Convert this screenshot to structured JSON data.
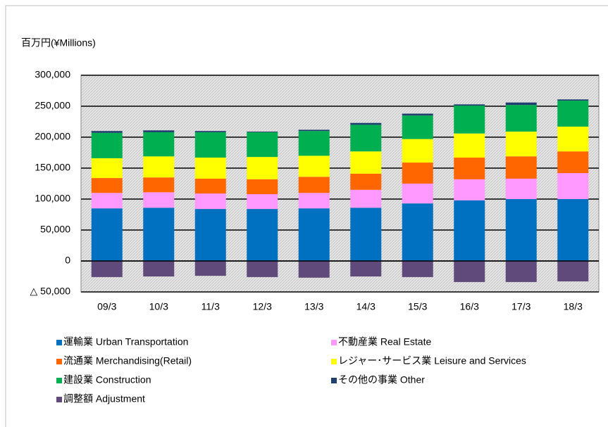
{
  "chart_data": {
    "type": "stacked_bar",
    "y_axis_label": "百万円(¥Millions)",
    "categories": [
      "09/3",
      "10/3",
      "11/3",
      "12/3",
      "13/3",
      "14/3",
      "15/3",
      "16/3",
      "17/3",
      "18/3"
    ],
    "series": [
      {
        "name": "運輸業 Urban Transportation",
        "color": "#0070c0",
        "values": [
          85000,
          86000,
          84000,
          84000,
          85000,
          86000,
          93000,
          98000,
          100000,
          100000
        ]
      },
      {
        "name": "不動産業 Real Estate",
        "color": "#ff99ff",
        "values": [
          25000,
          25000,
          25000,
          24000,
          25000,
          29000,
          32000,
          34000,
          33000,
          42000
        ]
      },
      {
        "name": "流通業 Merchandising(Retail)",
        "color": "#ff6600",
        "values": [
          24000,
          24000,
          24000,
          24000,
          26000,
          26000,
          34000,
          35000,
          36000,
          35000
        ]
      },
      {
        "name": "レジャー･サービス業 Leisure and Services",
        "color": "#ffff00",
        "values": [
          32000,
          34000,
          34000,
          36000,
          34000,
          36000,
          38000,
          39000,
          40000,
          40000
        ]
      },
      {
        "name": "建設業 Construction",
        "color": "#00b050",
        "values": [
          41000,
          39000,
          41000,
          40000,
          40000,
          43000,
          38000,
          45000,
          43000,
          42000
        ]
      },
      {
        "name": "その他の事業 Other",
        "color": "#1f3f6e",
        "values": [
          3000,
          3000,
          2000,
          1000,
          2000,
          3000,
          3000,
          2000,
          4000,
          2000
        ]
      },
      {
        "name": "調整額 Adjustment",
        "color": "#604a7b",
        "values": [
          -26000,
          -25000,
          -24000,
          -26000,
          -27000,
          -25000,
          -26000,
          -34000,
          -34000,
          -33000
        ]
      }
    ],
    "ylim": [
      -50000,
      300000
    ],
    "yticks": [
      {
        "value": -50000,
        "label": "△ 50,000"
      },
      0,
      {
        "value": 50000,
        "label": "50,000"
      },
      {
        "value": 100000,
        "label": "100,000"
      },
      {
        "value": 150000,
        "label": "150,000"
      },
      {
        "value": 200000,
        "label": "200,000"
      },
      {
        "value": 250000,
        "label": "250,000"
      },
      {
        "value": 300000,
        "label": "300,000"
      }
    ],
    "grid": true
  }
}
